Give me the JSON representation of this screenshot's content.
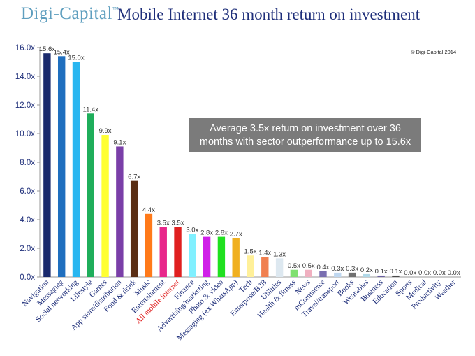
{
  "header": {
    "brand": "Digi-Capital",
    "brand_tm": "™",
    "title": "Mobile Internet 36 month return on investment"
  },
  "copyright": "© Digi-Capital 2014",
  "callout": {
    "line1": "Average 3.5x return on investment over 36",
    "line2": "months with sector outperformance up to 15.6x"
  },
  "chart_data": {
    "type": "bar",
    "title": "Mobile Internet 36 month return on investment",
    "xlabel": "",
    "ylabel": "",
    "ylim": [
      0,
      16
    ],
    "yticks": [
      0,
      2,
      4,
      6,
      8,
      10,
      12,
      14,
      16
    ],
    "ytick_labels": [
      "0.0x",
      "2.0x",
      "4.0x",
      "6.0x",
      "8.0x",
      "10.0x",
      "12.0x",
      "14.0x",
      "16.0x"
    ],
    "grid": false,
    "categories": [
      "Navigation",
      "Messaging",
      "Social networking",
      "Lifestyle",
      "Games",
      "App store/distribution",
      "Food & drink",
      "Music",
      "Entertainment",
      "All mobile internet",
      "Finance",
      "Advertising/marketing",
      "Photo & video",
      "Messaging (ex WhatsApp)",
      "Tech",
      "Enterprise/B2B",
      "Utilities",
      "Health & fitness",
      "News",
      "mCommerce",
      "Travel/transport",
      "Books",
      "Wearables",
      "Business",
      "Education",
      "Sports",
      "Medical",
      "Productivity",
      "Weather"
    ],
    "values": [
      15.6,
      15.4,
      15.0,
      11.4,
      9.9,
      9.1,
      6.7,
      4.4,
      3.5,
      3.5,
      3.0,
      2.8,
      2.8,
      2.7,
      1.5,
      1.4,
      1.3,
      0.5,
      0.5,
      0.4,
      0.3,
      0.3,
      0.2,
      0.1,
      0.1,
      0.0,
      0.0,
      0.0,
      0.0
    ],
    "value_labels": [
      "15.6x",
      "15.4x",
      "15.0x",
      "11.4x",
      "9.9x",
      "9.1x",
      "6.7x",
      "4.4x",
      "3.5x",
      "3.5x",
      "3.0x",
      "2.8x",
      "2.8x",
      "2.7x",
      "1.5x",
      "1.4x",
      "1.3x",
      "0.5x",
      "0.5x",
      "0.4x",
      "0.3x",
      "0.3x",
      "0.2x",
      "0.1x",
      "0.1x",
      "0.0x",
      "0.0x",
      "0.0x",
      "0.0x"
    ],
    "colors": [
      "#1a2a6c",
      "#1f6fbf",
      "#29b6f0",
      "#1fae5b",
      "#ffff33",
      "#7a3fa8",
      "#5a2e14",
      "#ff7a1a",
      "#e8278a",
      "#e02020",
      "#80f0ff",
      "#d020e8",
      "#20e020",
      "#f0b020",
      "#fff099",
      "#f08050",
      "#dde8f0",
      "#80e070",
      "#f0b0c0",
      "#7a6fb0",
      "#c0d8f0",
      "#707070",
      "#b0d8e8",
      "#6a5fa0",
      "#4a4a4a",
      "#d0d0d0",
      "#d0d0d0",
      "#d0d0d0",
      "#d0d0d0"
    ],
    "label_colors": [
      "#1f2f7a",
      "#1f2f7a",
      "#1f2f7a",
      "#1f2f7a",
      "#1f2f7a",
      "#1f2f7a",
      "#1f2f7a",
      "#1f2f7a",
      "#1f2f7a",
      "#e02020",
      "#1f2f7a",
      "#1f2f7a",
      "#1f2f7a",
      "#1f2f7a",
      "#1f2f7a",
      "#1f2f7a",
      "#1f2f7a",
      "#1f2f7a",
      "#1f2f7a",
      "#1f2f7a",
      "#1f2f7a",
      "#1f2f7a",
      "#1f2f7a",
      "#1f2f7a",
      "#1f2f7a",
      "#1f2f7a",
      "#1f2f7a",
      "#1f2f7a",
      "#1f2f7a"
    ]
  }
}
